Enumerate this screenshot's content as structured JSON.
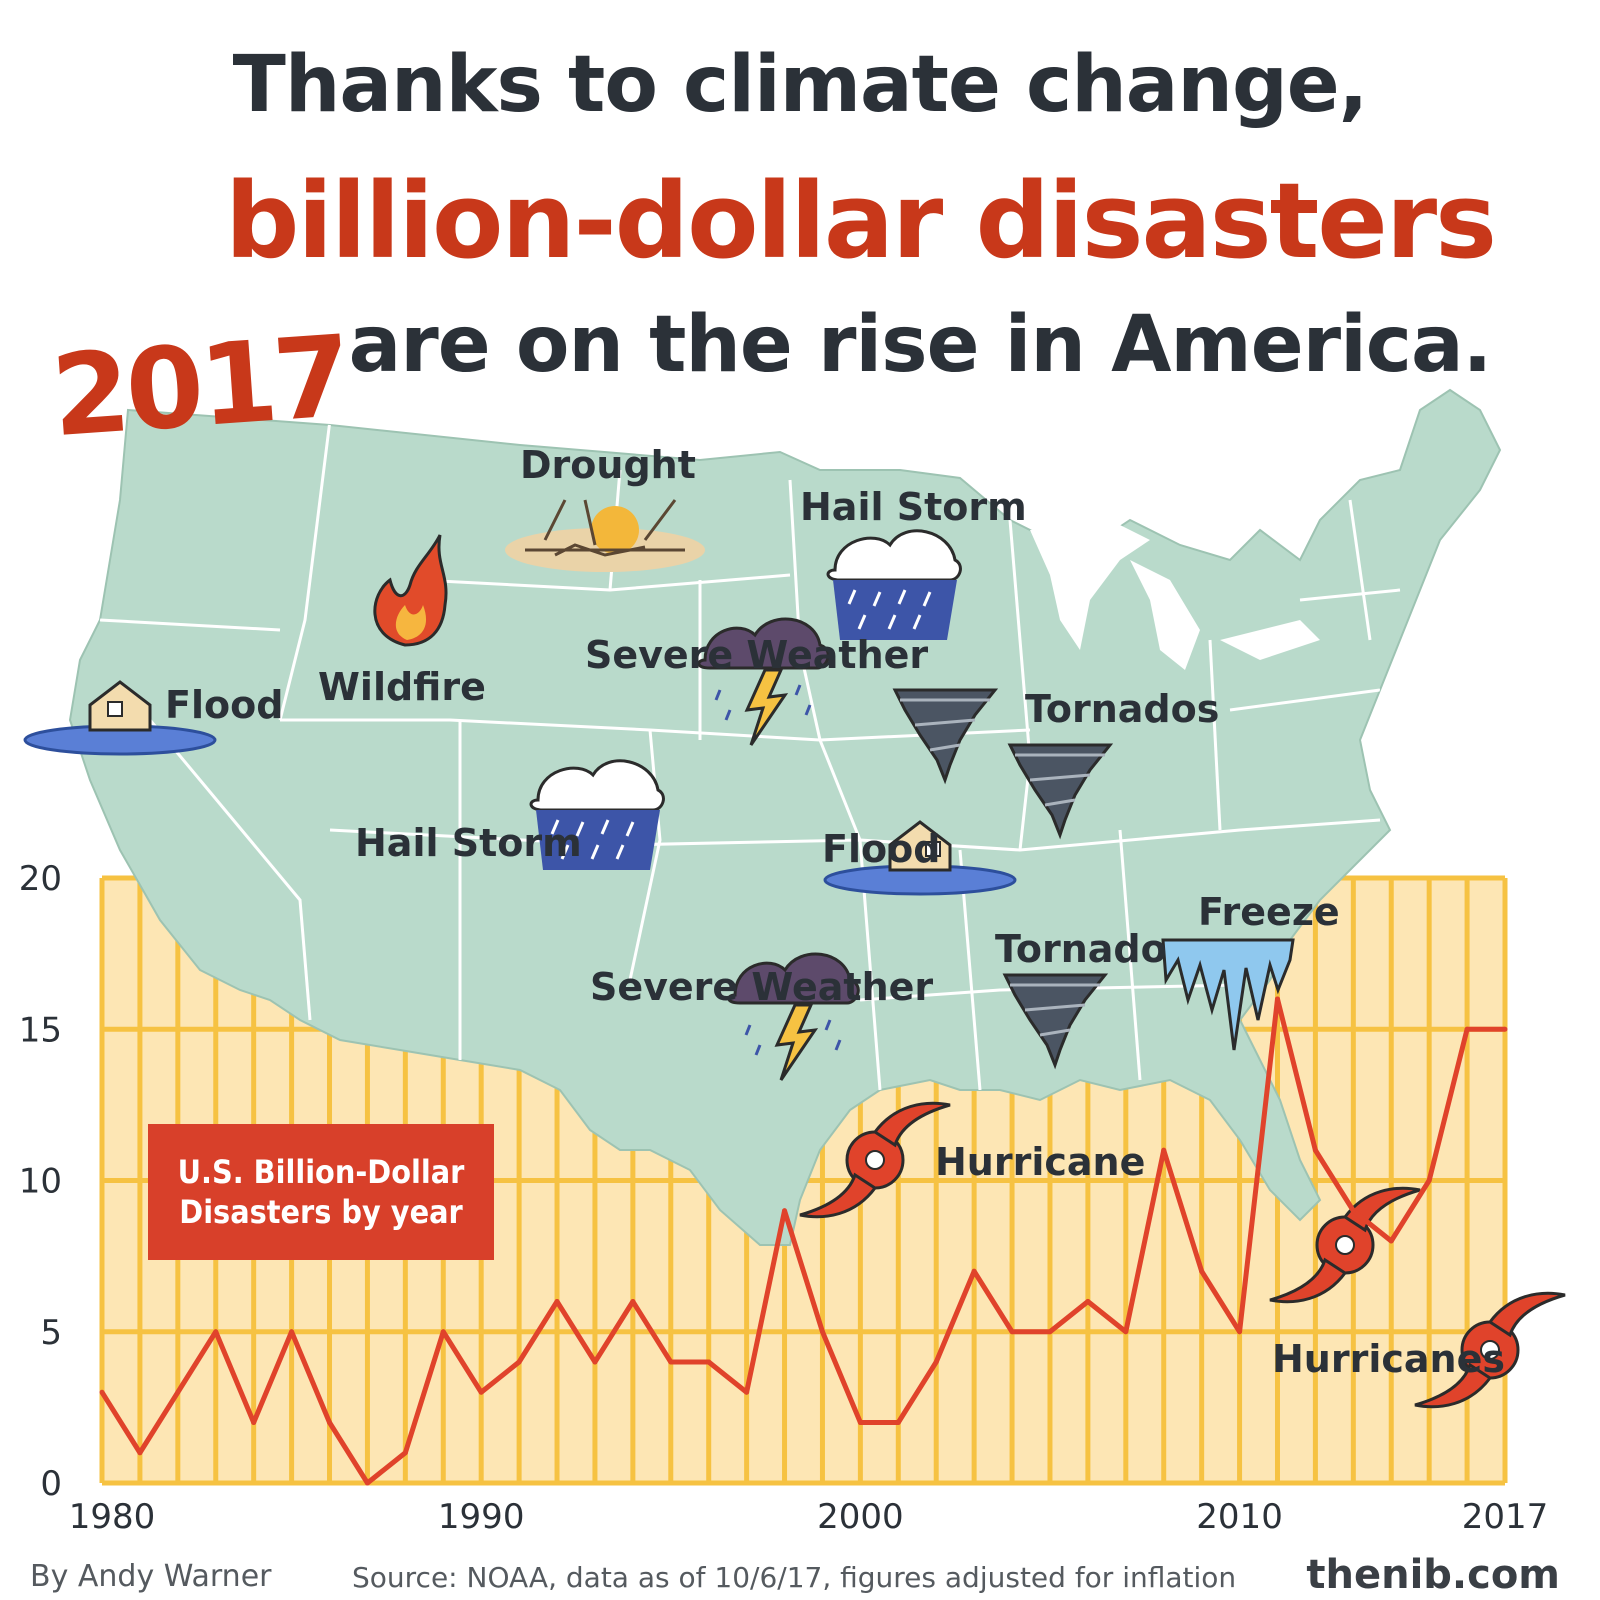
{
  "title": {
    "line1": "Thanks to climate change,",
    "line2": "billion-dollar disasters",
    "line3": "are on the rise in America."
  },
  "year_label": "2017",
  "map_labels": [
    {
      "text": "Drought",
      "icon": "drought-icon"
    },
    {
      "text": "Hail Storm",
      "icon": "hail-storm-icon"
    },
    {
      "text": "Wildfire",
      "icon": "wildfire-icon"
    },
    {
      "text": "Flood",
      "icon": "flood-icon"
    },
    {
      "text": "Severe Weather",
      "icon": "severe-weather-icon"
    },
    {
      "text": "Tornados",
      "icon": "tornado-icon"
    },
    {
      "text": "Hail Storm",
      "icon": "hail-storm-icon"
    },
    {
      "text": "Flood",
      "icon": "flood-icon"
    },
    {
      "text": "Tornado",
      "icon": "tornado-icon"
    },
    {
      "text": "Freeze",
      "icon": "freeze-icon"
    },
    {
      "text": "Severe Weather",
      "icon": "severe-weather-icon"
    },
    {
      "text": "Hurricane",
      "icon": "hurricane-icon"
    },
    {
      "text": "Hurricanes",
      "icon": "hurricane-icon"
    }
  ],
  "legend_label": "U.S. Billion-Dollar Disasters by year",
  "credits": {
    "author": "By Andy Warner",
    "source": "Source: NOAA, data as of 10/6/17, figures adjusted for inflation",
    "site": "thenib.com"
  },
  "colors": {
    "accent_red": "#c8381a",
    "line": "#e0432b",
    "bars": "#f6c242",
    "bar_bg": "#fde6b4",
    "map": "#b9dacb",
    "text_dark": "#2b3138"
  },
  "chart_data": {
    "type": "line",
    "title": "U.S. Billion-Dollar Disasters by year",
    "x": [
      1980,
      1981,
      1982,
      1983,
      1984,
      1985,
      1986,
      1987,
      1988,
      1989,
      1990,
      1991,
      1992,
      1993,
      1994,
      1995,
      1996,
      1997,
      1998,
      1999,
      2000,
      2001,
      2002,
      2003,
      2004,
      2005,
      2006,
      2007,
      2008,
      2009,
      2010,
      2011,
      2012,
      2013,
      2014,
      2015,
      2016,
      2017
    ],
    "series": [
      {
        "values": [
          3,
          1,
          3,
          5,
          2,
          5,
          2,
          0,
          1,
          5,
          3,
          4,
          6,
          4,
          6,
          4,
          4,
          3,
          9,
          5,
          2,
          2,
          4,
          7,
          5,
          5,
          6,
          5,
          11,
          7,
          5,
          16,
          11,
          9,
          8,
          10,
          15,
          15
        ]
      }
    ],
    "x_ticks": [
      "1980",
      "1990",
      "2000",
      "2010",
      "2017"
    ],
    "x_tick_values": [
      1980,
      1990,
      2000,
      2010,
      2017
    ],
    "y_ticks": [
      "0",
      "5",
      "10",
      "15",
      "20"
    ],
    "y_tick_values": [
      0,
      5,
      10,
      15,
      20
    ],
    "xlim": [
      1980,
      2017
    ],
    "ylim": [
      0,
      20
    ],
    "grid": true,
    "xlabel": "",
    "ylabel": ""
  }
}
